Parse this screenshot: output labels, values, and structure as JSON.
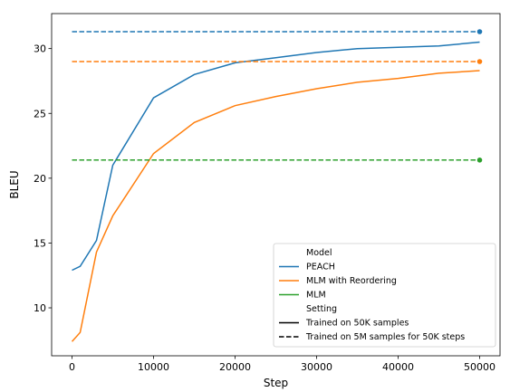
{
  "chart_data": {
    "type": "line",
    "xlabel": "Step",
    "ylabel": "BLEU",
    "xlim": [
      -2500,
      52500
    ],
    "ylim": [
      6.3,
      32.7
    ],
    "xticks": [
      0,
      10000,
      20000,
      30000,
      40000,
      50000
    ],
    "yticks": [
      10,
      15,
      20,
      25,
      30
    ],
    "grid": false,
    "legend_position": "bottom-right",
    "legend": {
      "hue_title": "Model",
      "style_title": "Setting",
      "entries": [
        {
          "label": "PEACH",
          "color": "#1f77b4"
        },
        {
          "label": "MLM with Reordering",
          "color": "#ff7f0e"
        },
        {
          "label": "MLM",
          "color": "#2ca02c"
        }
      ],
      "styles": [
        {
          "label": "Trained on 50K samples",
          "dash": "solid"
        },
        {
          "label": "Trained on 5M samples for 50K steps",
          "dash": "dashed"
        }
      ]
    },
    "series": [
      {
        "name": "PEACH",
        "color": "#1f77b4",
        "setting": "Trained on 50K samples",
        "x": [
          0,
          1000,
          3000,
          5000,
          10000,
          15000,
          20000,
          25000,
          30000,
          35000,
          40000,
          45000,
          50000
        ],
        "y": [
          12.9,
          13.2,
          15.2,
          21.0,
          26.2,
          28.0,
          28.9,
          29.3,
          29.7,
          30.0,
          30.1,
          30.2,
          30.5
        ]
      },
      {
        "name": "MLM with Reordering",
        "color": "#ff7f0e",
        "setting": "Trained on 50K samples",
        "x": [
          0,
          1000,
          3000,
          5000,
          10000,
          15000,
          20000,
          25000,
          30000,
          35000,
          40000,
          45000,
          50000
        ],
        "y": [
          7.4,
          8.1,
          14.3,
          17.1,
          21.9,
          24.3,
          25.6,
          26.3,
          26.9,
          27.4,
          27.7,
          28.1,
          28.3
        ]
      },
      {
        "name": "PEACH",
        "color": "#1f77b4",
        "setting": "Trained on 5M samples for 50K steps",
        "x": [
          0,
          50000
        ],
        "y": [
          31.3,
          31.3
        ]
      },
      {
        "name": "MLM with Reordering",
        "color": "#ff7f0e",
        "setting": "Trained on 5M samples for 50K steps",
        "x": [
          0,
          50000
        ],
        "y": [
          29.0,
          29.0
        ]
      },
      {
        "name": "MLM",
        "color": "#2ca02c",
        "setting": "Trained on 5M samples for 50K steps",
        "x": [
          0,
          50000
        ],
        "y": [
          21.4,
          21.4
        ]
      }
    ]
  }
}
